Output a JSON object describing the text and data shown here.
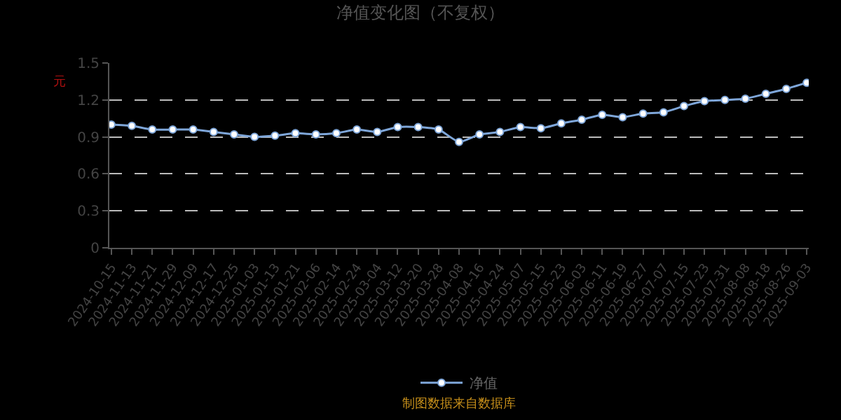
{
  "chart_data": {
    "type": "line",
    "title": "净值变化图（不复权）",
    "ylabel": "元",
    "categories": [
      "2024-10-15",
      "2024-11-13",
      "2024-11-21",
      "2024-11-29",
      "2024-12-09",
      "2024-12-17",
      "2024-12-25",
      "2025-01-03",
      "2025-01-13",
      "2025-01-21",
      "2025-02-06",
      "2025-02-14",
      "2025-02-24",
      "2025-03-04",
      "2025-03-12",
      "2025-03-20",
      "2025-03-28",
      "2025-04-08",
      "2025-04-16",
      "2025-04-24",
      "2025-05-07",
      "2025-05-15",
      "2025-05-23",
      "2025-06-03",
      "2025-06-11",
      "2025-06-19",
      "2025-06-27",
      "2025-07-07",
      "2025-07-15",
      "2025-07-23",
      "2025-07-31",
      "2025-08-08",
      "2025-08-18",
      "2025-08-26",
      "2025-09-03"
    ],
    "series": [
      {
        "name": "净值",
        "color": "#7ea6d9",
        "values": [
          1.0,
          0.99,
          0.96,
          0.96,
          0.96,
          0.94,
          0.92,
          0.9,
          0.91,
          0.93,
          0.92,
          0.93,
          0.96,
          0.94,
          0.98,
          0.98,
          0.96,
          0.86,
          0.92,
          0.94,
          0.98,
          0.97,
          1.01,
          1.04,
          1.08,
          1.06,
          1.09,
          1.1,
          1.15,
          1.19,
          1.2,
          1.21,
          1.25,
          1.29,
          1.34
        ]
      }
    ],
    "ylim": [
      0,
      1.5
    ],
    "yticks": [
      0,
      0.3,
      0.6,
      0.9,
      1.2,
      1.5
    ],
    "grid": "y",
    "legend": "bottom",
    "marker": "circle",
    "line_style": "solid",
    "annotations": [
      "制图数据来自数据库"
    ]
  }
}
